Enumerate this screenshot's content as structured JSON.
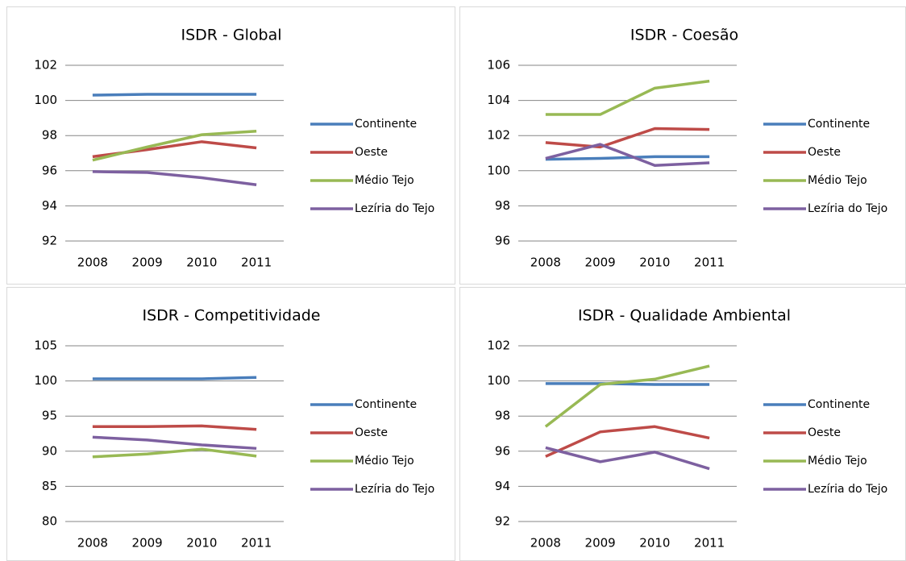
{
  "chart_data": [
    {
      "type": "line",
      "title": "ISDR - Global",
      "categories": [
        "2008",
        "2009",
        "2010",
        "2011"
      ],
      "ylim": [
        92,
        102
      ],
      "yticks": [
        92,
        94,
        96,
        98,
        100,
        102
      ],
      "grid": true,
      "legend": "right",
      "series": [
        {
          "name": "Continente",
          "color": "#4a7ebb",
          "values": [
            100.3,
            100.35,
            100.35,
            100.35
          ]
        },
        {
          "name": "Oeste",
          "color": "#be4b48",
          "values": [
            96.8,
            97.2,
            97.65,
            97.3
          ]
        },
        {
          "name": "Médio Tejo",
          "color": "#98b954",
          "values": [
            96.6,
            97.35,
            98.05,
            98.25
          ]
        },
        {
          "name": "Lezíria do Tejo",
          "color": "#7d60a0",
          "values": [
            95.95,
            95.9,
            95.6,
            95.2
          ]
        }
      ]
    },
    {
      "type": "line",
      "title": "ISDR - Coesão",
      "categories": [
        "2008",
        "2009",
        "2010",
        "2011"
      ],
      "ylim": [
        96,
        106
      ],
      "yticks": [
        96,
        98,
        100,
        102,
        104,
        106
      ],
      "grid": true,
      "legend": "right",
      "series": [
        {
          "name": "Continente",
          "color": "#4a7ebb",
          "values": [
            100.65,
            100.7,
            100.8,
            100.8
          ]
        },
        {
          "name": "Oeste",
          "color": "#be4b48",
          "values": [
            101.6,
            101.35,
            102.4,
            102.35
          ]
        },
        {
          "name": "Médio Tejo",
          "color": "#98b954",
          "values": [
            103.2,
            103.2,
            104.7,
            105.1
          ]
        },
        {
          "name": "Lezíria do Tejo",
          "color": "#7d60a0",
          "values": [
            100.7,
            101.5,
            100.3,
            100.45
          ]
        }
      ]
    },
    {
      "type": "line",
      "title": "ISDR - Competitividade",
      "categories": [
        "2008",
        "2009",
        "2010",
        "2011"
      ],
      "ylim": [
        80,
        105
      ],
      "yticks": [
        80,
        85,
        90,
        95,
        100,
        105
      ],
      "grid": true,
      "legend": "right",
      "series": [
        {
          "name": "Continente",
          "color": "#4a7ebb",
          "values": [
            100.3,
            100.3,
            100.3,
            100.5
          ]
        },
        {
          "name": "Oeste",
          "color": "#be4b48",
          "values": [
            93.5,
            93.5,
            93.6,
            93.1
          ]
        },
        {
          "name": "Médio Tejo",
          "color": "#98b954",
          "values": [
            89.2,
            89.6,
            90.3,
            89.3
          ]
        },
        {
          "name": "Lezíria do Tejo",
          "color": "#7d60a0",
          "values": [
            92.0,
            91.6,
            90.9,
            90.4
          ]
        }
      ]
    },
    {
      "type": "line",
      "title": "ISDR - Qualidade Ambiental",
      "categories": [
        "2008",
        "2009",
        "2010",
        "2011"
      ],
      "ylim": [
        92,
        102
      ],
      "yticks": [
        92,
        94,
        96,
        98,
        100,
        102
      ],
      "grid": true,
      "legend": "right",
      "series": [
        {
          "name": "Continente",
          "color": "#4a7ebb",
          "values": [
            99.85,
            99.85,
            99.8,
            99.8
          ]
        },
        {
          "name": "Oeste",
          "color": "#be4b48",
          "values": [
            95.7,
            97.1,
            97.4,
            96.75
          ]
        },
        {
          "name": "Médio Tejo",
          "color": "#98b954",
          "values": [
            97.4,
            99.8,
            100.1,
            100.85
          ]
        },
        {
          "name": "Lezíria do Tejo",
          "color": "#7d60a0",
          "values": [
            96.2,
            95.4,
            95.95,
            95.0
          ]
        }
      ]
    }
  ]
}
